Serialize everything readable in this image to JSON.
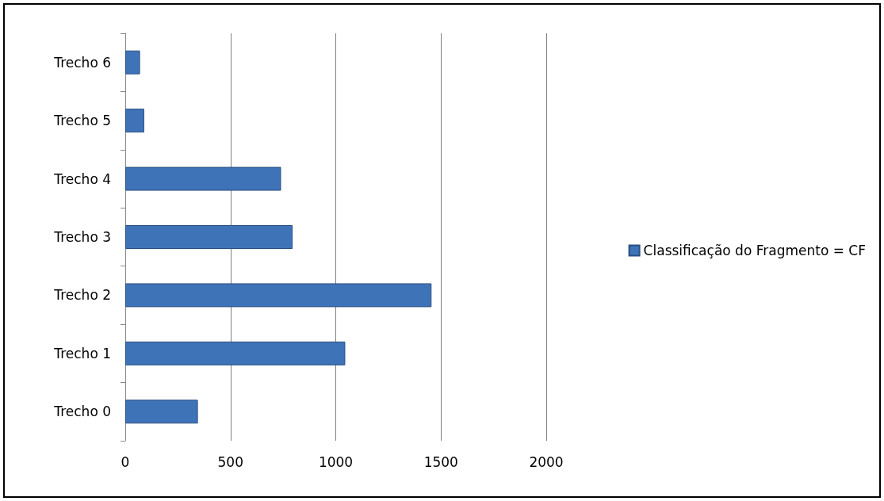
{
  "chart_data": {
    "type": "bar",
    "orientation": "horizontal",
    "categories": [
      "Trecho 6",
      "Trecho 5",
      "Trecho 4",
      "Trecho 3",
      "Trecho 2",
      "Trecho 1",
      "Trecho 0"
    ],
    "series": [
      {
        "name": "Classificação do Fragmento = CF",
        "color": "#3f73b8",
        "values": [
          70,
          90,
          740,
          795,
          1455,
          1045,
          345
        ]
      }
    ],
    "xlim": [
      0,
      2000
    ],
    "xticks": [
      0,
      500,
      1000,
      1500,
      2000
    ],
    "grid": "x",
    "legend": "right"
  }
}
